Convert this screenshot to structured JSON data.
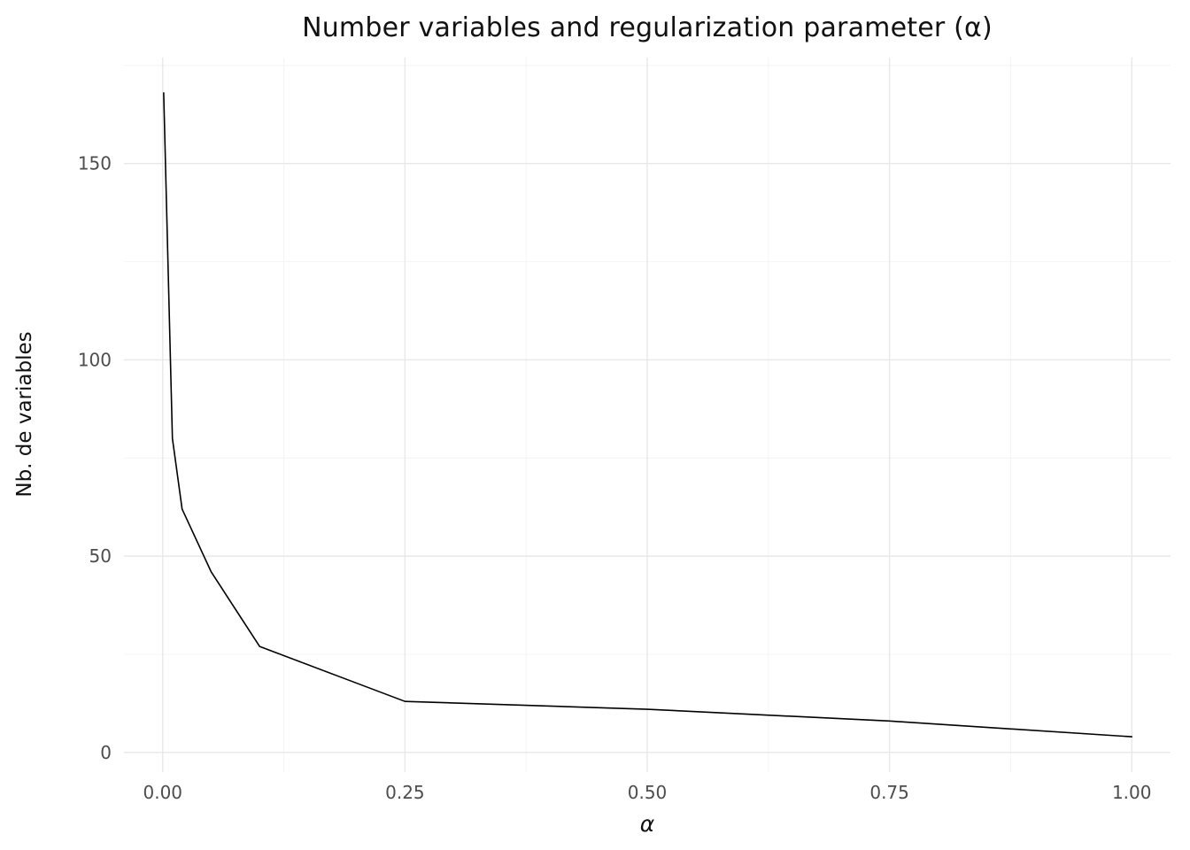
{
  "chart_data": {
    "type": "line",
    "title": "Number variables and regularization parameter (α)",
    "xlabel": "α",
    "ylabel": "Nb. de variables",
    "x": [
      0.001,
      0.01,
      0.02,
      0.05,
      0.1,
      0.25,
      0.5,
      0.75,
      1.0
    ],
    "y": [
      168,
      80,
      62,
      46,
      27,
      13,
      11,
      8,
      4
    ],
    "xlim": [
      -0.04,
      1.04
    ],
    "ylim": [
      -5,
      177
    ],
    "x_ticks": [
      0,
      0.25,
      0.5,
      0.75,
      1.0
    ],
    "x_tick_labels": [
      "0.00",
      "0.25",
      "0.50",
      "0.75",
      "1.00"
    ],
    "y_ticks": [
      0,
      50,
      100,
      150
    ],
    "y_tick_labels": [
      "0",
      "50",
      "100",
      "150"
    ],
    "x_minor_gridlines": [
      0.125,
      0.375,
      0.625,
      0.875
    ],
    "y_minor_gridlines": [
      25,
      75,
      125,
      175
    ],
    "grid": "on",
    "legend": "none",
    "colors": {
      "line": "#000000",
      "grid_major": "#e8e8e8",
      "grid_minor": "#f4f4f4",
      "tick_text": "#4d4d4d",
      "title_text": "#111111",
      "axis_label_text": "#111111"
    }
  }
}
